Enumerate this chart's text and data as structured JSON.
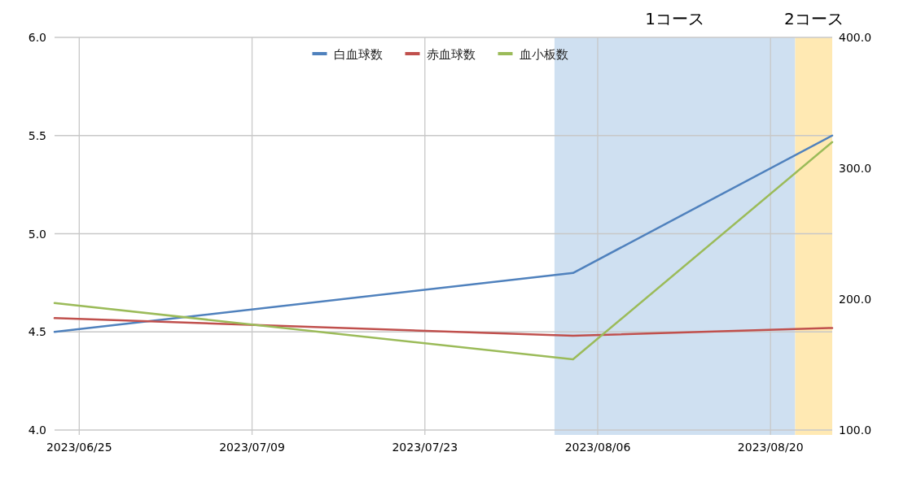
{
  "chart_data": {
    "type": "line",
    "x": [
      "2023-06-23",
      "2023-08-04",
      "2023-08-25"
    ],
    "series": [
      {
        "name": "白血球数",
        "color": "#4f81bd",
        "values": [
          4.5,
          4.8,
          5.5
        ]
      },
      {
        "name": "赤血球数",
        "color": "#c0504d",
        "values": [
          4.57,
          4.48,
          4.52
        ]
      },
      {
        "name": "血小板数",
        "color": "#9bbb59",
        "axis": "y2",
        "values": [
          197,
          154,
          320
        ]
      }
    ],
    "xlim": [
      "2023-06-23",
      "2023-08-25"
    ],
    "xticks": [
      {
        "value": "2023-06-25",
        "label": "2023/06/25"
      },
      {
        "value": "2023-07-09",
        "label": "2023/07/09"
      },
      {
        "value": "2023-07-23",
        "label": "2023/07/23"
      },
      {
        "value": "2023-08-06",
        "label": "2023/08/06"
      },
      {
        "value": "2023-08-20",
        "label": "2023/08/20"
      }
    ],
    "ylim": [
      4.0,
      6.0
    ],
    "yticks": [
      {
        "value": 4,
        "label": "4.0"
      },
      {
        "value": 4.5,
        "label": "4.5"
      },
      {
        "value": 5,
        "label": "5.0"
      },
      {
        "value": 5.5,
        "label": "5.5"
      },
      {
        "value": 6,
        "label": "6.0"
      }
    ],
    "y2lim": [
      100,
      400
    ],
    "y2ticks": [
      {
        "value": 100,
        "label": "100.0"
      },
      {
        "value": 200,
        "label": "200.0"
      },
      {
        "value": 300,
        "label": "300.0"
      },
      {
        "value": 400,
        "label": "400.0"
      }
    ],
    "bands": [
      {
        "axis": "x",
        "from": "2023-08-02T12:00",
        "to": "2023-08-22",
        "label": "1コース",
        "color": "#cfe0f1"
      },
      {
        "axis": "x",
        "from": "2023-08-22",
        "to": "2023-08-25",
        "label": "2コース",
        "color": "#ffe9b3"
      }
    ],
    "grid": true,
    "legend": "top",
    "line_style": "solid"
  }
}
